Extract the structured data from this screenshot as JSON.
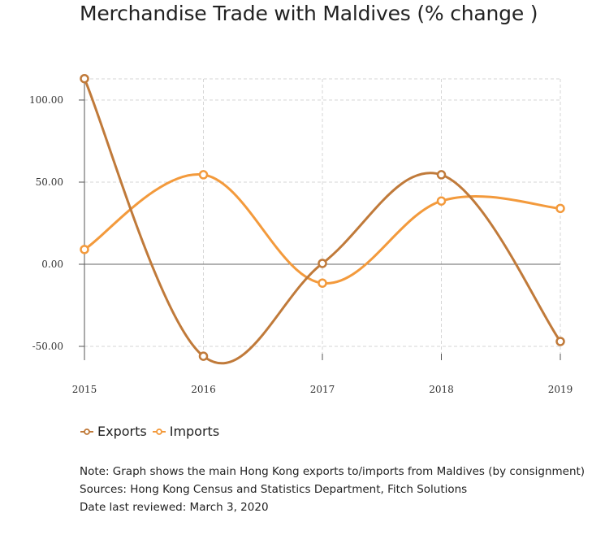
{
  "chart_data": {
    "type": "line",
    "title": "Merchandise Trade with Maldives (% change )",
    "x": [
      "2015",
      "2016",
      "2017",
      "2018",
      "2019"
    ],
    "yticks": [
      "100.00",
      "50.00",
      "0.00",
      "-50.00"
    ],
    "ylim": [
      -55,
      113
    ],
    "grid": true,
    "smooth": true,
    "legend_position": "bottom-left",
    "series": [
      {
        "name": "Exports",
        "color": "#c07a3a",
        "values": [
          113,
          -56,
          0.5,
          54.5,
          -47
        ]
      },
      {
        "name": "Imports",
        "color": "#f39a3c",
        "values": [
          9,
          54.5,
          -11.5,
          38.5,
          34
        ]
      }
    ]
  },
  "notes": {
    "line1": "Note: Graph shows the main Hong Kong exports to/imports from Maldives (by consignment)",
    "line2": "Sources: Hong Kong Census and Statistics Department, Fitch Solutions",
    "line3": "Date last reviewed: March 3, 2020"
  }
}
